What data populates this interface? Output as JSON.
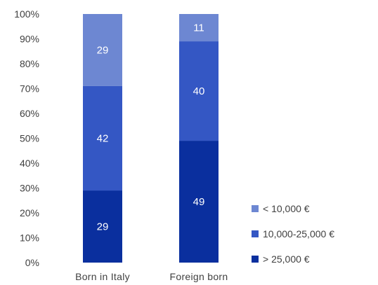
{
  "chart_data": {
    "type": "bar",
    "stacked": true,
    "title": "",
    "xlabel": "",
    "ylabel": "",
    "categories": [
      "Born in Italy",
      "Foreign born"
    ],
    "series": [
      {
        "name": "> 25,000 €",
        "values": [
          29,
          49
        ],
        "color": "#0a2f9e"
      },
      {
        "name": "10,000-25,000 €",
        "values": [
          42,
          40
        ],
        "color": "#3457c4"
      },
      {
        "name": "< 10,000 €",
        "values": [
          29,
          11
        ],
        "color": "#6d87d2"
      }
    ],
    "ylim": [
      0,
      100
    ],
    "yticks": [
      "0%",
      "10%",
      "20%",
      "30%",
      "40%",
      "50%",
      "60%",
      "70%",
      "80%",
      "90%",
      "100%"
    ],
    "legend": {
      "placement": "right",
      "entries": [
        "< 10,000 €",
        "10,000-25,000 €",
        "> 25,000 €"
      ]
    },
    "grid": false
  }
}
